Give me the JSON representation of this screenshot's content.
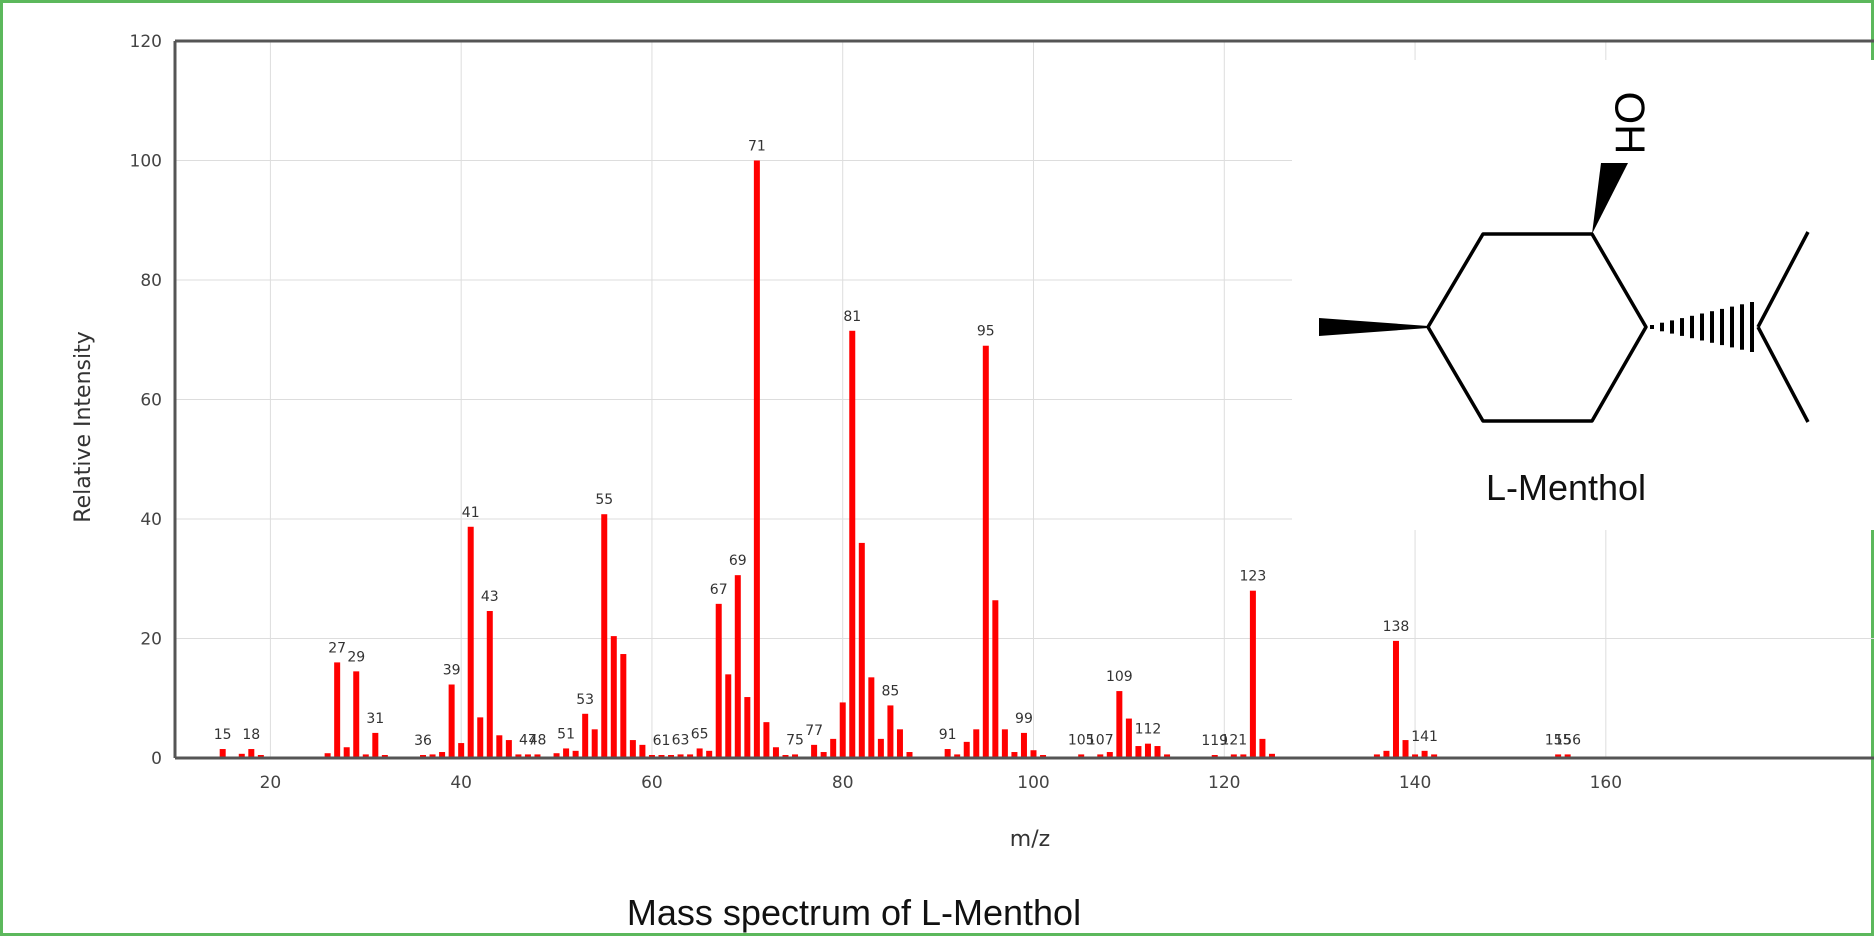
{
  "caption": "Mass spectrum of L-Menthol",
  "molecule": {
    "name": "L-Menthol",
    "group_label": "OH"
  },
  "colors": {
    "bar": "#ff0000",
    "frame": "#5cb85c",
    "grid": "#dddddd",
    "axis": "#555555"
  },
  "chart_data": {
    "type": "bar",
    "title": "",
    "xlabel": "m/z",
    "ylabel": "Relative Intensity",
    "xlim": [
      10,
      160
    ],
    "ylim": [
      0,
      120
    ],
    "x_ticks": [
      20,
      40,
      60,
      80,
      100,
      120,
      140,
      160
    ],
    "y_ticks": [
      0,
      20,
      40,
      60,
      80,
      100,
      120
    ],
    "grid": true,
    "peaks": [
      {
        "mz": 15,
        "i": 1.5,
        "label": "15"
      },
      {
        "mz": 17,
        "i": 0.7
      },
      {
        "mz": 18,
        "i": 1.5,
        "label": "18"
      },
      {
        "mz": 19,
        "i": 0.5
      },
      {
        "mz": 26,
        "i": 0.8
      },
      {
        "mz": 27,
        "i": 16,
        "label": "27"
      },
      {
        "mz": 28,
        "i": 1.8
      },
      {
        "mz": 29,
        "i": 14.5,
        "label": "29"
      },
      {
        "mz": 30,
        "i": 0.6
      },
      {
        "mz": 31,
        "i": 4.2,
        "label": "31"
      },
      {
        "mz": 32,
        "i": 0.5
      },
      {
        "mz": 36,
        "i": 0.5,
        "label": "36"
      },
      {
        "mz": 37,
        "i": 0.6
      },
      {
        "mz": 38,
        "i": 1.0
      },
      {
        "mz": 39,
        "i": 12.3,
        "label": "39"
      },
      {
        "mz": 40,
        "i": 2.5
      },
      {
        "mz": 41,
        "i": 38.7,
        "label": "41"
      },
      {
        "mz": 42,
        "i": 6.8
      },
      {
        "mz": 43,
        "i": 24.6,
        "label": "43"
      },
      {
        "mz": 44,
        "i": 3.8
      },
      {
        "mz": 45,
        "i": 3.0
      },
      {
        "mz": 46,
        "i": 0.6
      },
      {
        "mz": 47,
        "i": 0.6,
        "label": "47"
      },
      {
        "mz": 48,
        "i": 0.6,
        "label": "48"
      },
      {
        "mz": 50,
        "i": 0.8
      },
      {
        "mz": 51,
        "i": 1.6,
        "label": "51"
      },
      {
        "mz": 52,
        "i": 1.2
      },
      {
        "mz": 53,
        "i": 7.4,
        "label": "53"
      },
      {
        "mz": 54,
        "i": 4.8
      },
      {
        "mz": 55,
        "i": 40.8,
        "label": "55"
      },
      {
        "mz": 56,
        "i": 20.4
      },
      {
        "mz": 57,
        "i": 17.4
      },
      {
        "mz": 58,
        "i": 3.0
      },
      {
        "mz": 59,
        "i": 2.2
      },
      {
        "mz": 60,
        "i": 0.5
      },
      {
        "mz": 61,
        "i": 0.5,
        "label": "61"
      },
      {
        "mz": 62,
        "i": 0.5
      },
      {
        "mz": 63,
        "i": 0.6,
        "label": "63"
      },
      {
        "mz": 64,
        "i": 0.6
      },
      {
        "mz": 65,
        "i": 1.6,
        "label": "65"
      },
      {
        "mz": 66,
        "i": 1.2
      },
      {
        "mz": 67,
        "i": 25.8,
        "label": "67"
      },
      {
        "mz": 68,
        "i": 14.0
      },
      {
        "mz": 69,
        "i": 30.6,
        "label": "69"
      },
      {
        "mz": 70,
        "i": 10.2
      },
      {
        "mz": 71,
        "i": 100,
        "label": "71"
      },
      {
        "mz": 72,
        "i": 6.0
      },
      {
        "mz": 73,
        "i": 1.8
      },
      {
        "mz": 74,
        "i": 0.5
      },
      {
        "mz": 75,
        "i": 0.6,
        "label": "75"
      },
      {
        "mz": 77,
        "i": 2.2,
        "label": "77"
      },
      {
        "mz": 78,
        "i": 1.0
      },
      {
        "mz": 79,
        "i": 3.2
      },
      {
        "mz": 80,
        "i": 9.3
      },
      {
        "mz": 81,
        "i": 71.5,
        "label": "81"
      },
      {
        "mz": 82,
        "i": 36.0
      },
      {
        "mz": 83,
        "i": 13.5
      },
      {
        "mz": 84,
        "i": 3.2
      },
      {
        "mz": 85,
        "i": 8.8,
        "label": "85"
      },
      {
        "mz": 86,
        "i": 4.8
      },
      {
        "mz": 87,
        "i": 1.0
      },
      {
        "mz": 91,
        "i": 1.5,
        "label": "91"
      },
      {
        "mz": 92,
        "i": 0.6
      },
      {
        "mz": 93,
        "i": 2.7
      },
      {
        "mz": 94,
        "i": 4.8
      },
      {
        "mz": 95,
        "i": 69.0,
        "label": "95"
      },
      {
        "mz": 96,
        "i": 26.4
      },
      {
        "mz": 97,
        "i": 4.8
      },
      {
        "mz": 98,
        "i": 1.0
      },
      {
        "mz": 99,
        "i": 4.2,
        "label": "99"
      },
      {
        "mz": 100,
        "i": 1.3
      },
      {
        "mz": 101,
        "i": 0.5
      },
      {
        "mz": 105,
        "i": 0.6,
        "label": "105"
      },
      {
        "mz": 107,
        "i": 0.6,
        "label": "107"
      },
      {
        "mz": 108,
        "i": 1.0
      },
      {
        "mz": 109,
        "i": 11.2,
        "label": "109"
      },
      {
        "mz": 110,
        "i": 6.6
      },
      {
        "mz": 111,
        "i": 2.0
      },
      {
        "mz": 112,
        "i": 2.4,
        "label": "112"
      },
      {
        "mz": 113,
        "i": 2.0
      },
      {
        "mz": 114,
        "i": 0.6
      },
      {
        "mz": 119,
        "i": 0.5,
        "label": "119"
      },
      {
        "mz": 121,
        "i": 0.6,
        "label": "121"
      },
      {
        "mz": 122,
        "i": 0.6
      },
      {
        "mz": 123,
        "i": 28.0,
        "label": "123"
      },
      {
        "mz": 124,
        "i": 3.2
      },
      {
        "mz": 125,
        "i": 0.7
      },
      {
        "mz": 136,
        "i": 0.6
      },
      {
        "mz": 137,
        "i": 1.2
      },
      {
        "mz": 138,
        "i": 19.6,
        "label": "138"
      },
      {
        "mz": 139,
        "i": 3.0
      },
      {
        "mz": 140,
        "i": 0.6
      },
      {
        "mz": 141,
        "i": 1.2,
        "label": "141"
      },
      {
        "mz": 142,
        "i": 0.6
      },
      {
        "mz": 155,
        "i": 0.6,
        "label": "155"
      },
      {
        "mz": 156,
        "i": 0.6,
        "label": "156"
      }
    ]
  }
}
